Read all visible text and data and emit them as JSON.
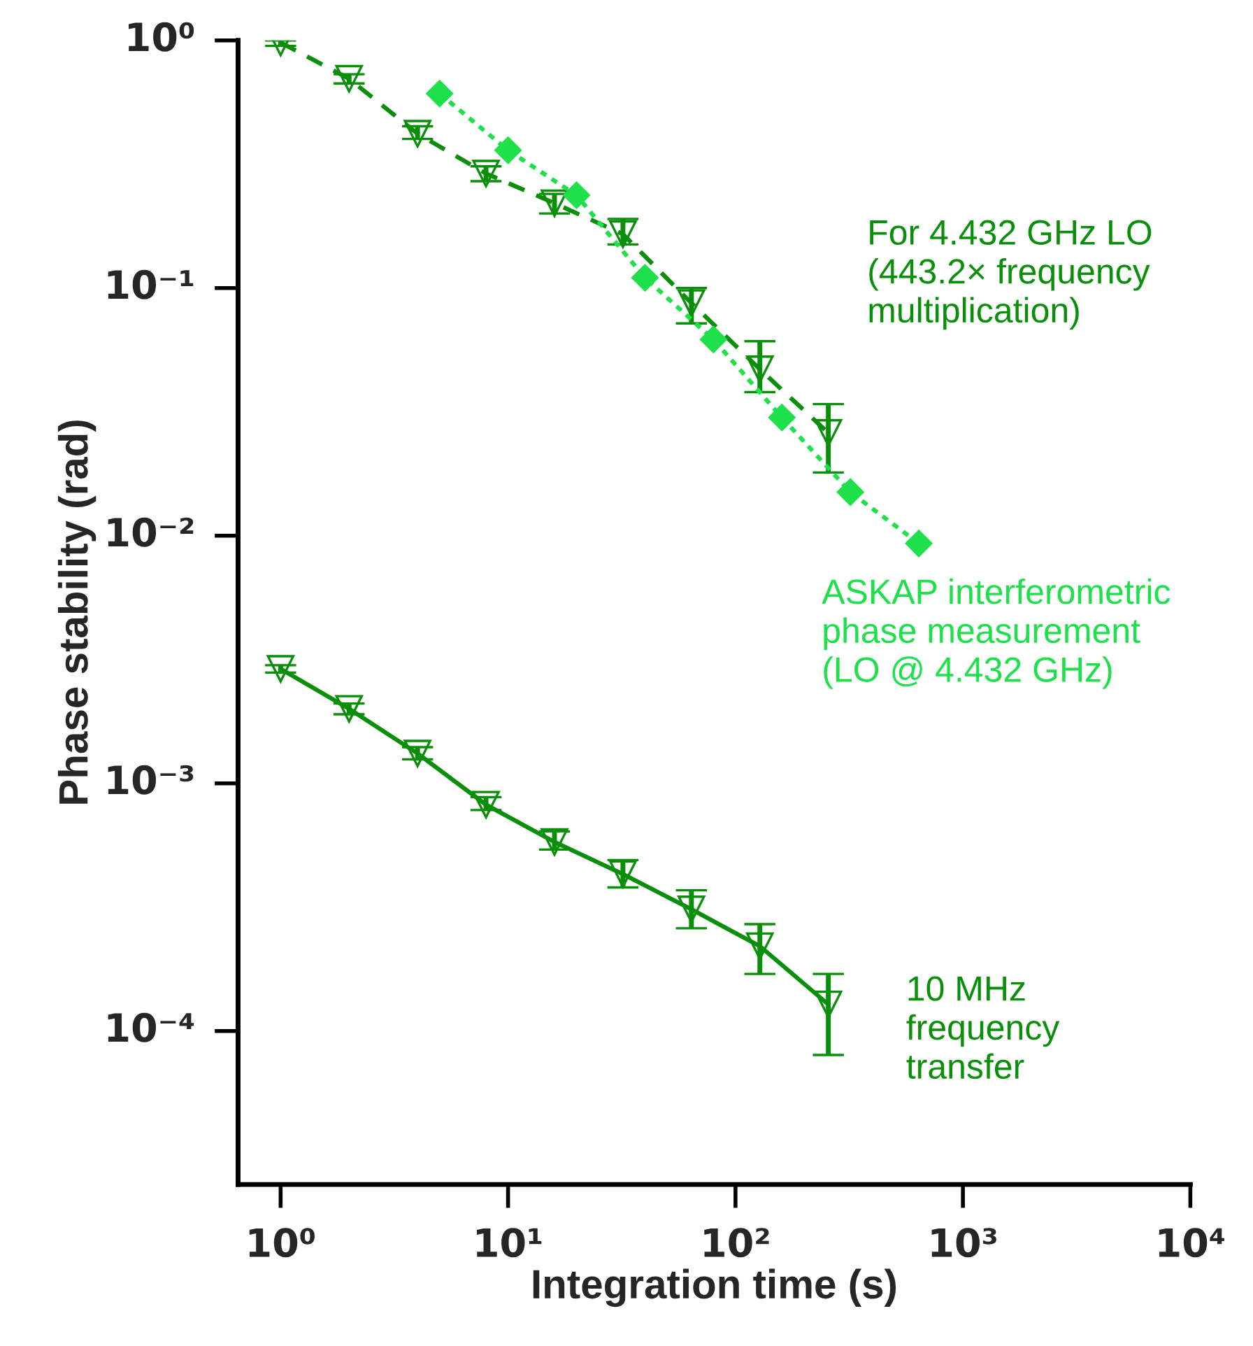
{
  "chart_data": {
    "type": "line",
    "xlabel": "Integration time (s)",
    "ylabel": "Phase stability (rad)",
    "log": "xy",
    "grid": false,
    "legend": false,
    "xlim": [
      0.65,
      10000
    ],
    "ylim": [
      2.4e-05,
      1
    ],
    "xticks": [
      {
        "value": 1,
        "label": "10⁰"
      },
      {
        "value": 10,
        "label": "10¹"
      },
      {
        "value": 100,
        "label": "10²"
      },
      {
        "value": 1000,
        "label": "10³"
      },
      {
        "value": 10000,
        "label": "10⁴"
      }
    ],
    "yticks": [
      {
        "value": 0.0001,
        "label": "10⁻⁴"
      },
      {
        "value": 0.001,
        "label": "10⁻³"
      },
      {
        "value": 0.01,
        "label": "10⁻²"
      },
      {
        "value": 0.1,
        "label": "10⁻¹"
      },
      {
        "value": 1,
        "label": "10⁰"
      }
    ],
    "series": [
      {
        "name": "For 4.432 GHz LO\n(443.2× frequency\nmultiplication)",
        "color": "#0a8f0a",
        "marker": "triangle",
        "line_style": "dashed",
        "x": [
          1,
          2,
          4,
          8,
          16,
          32,
          64,
          128,
          256
        ],
        "values": [
          0.98,
          0.7,
          0.42,
          0.29,
          0.22,
          0.165,
          0.087,
          0.047,
          0.026
        ],
        "errors": [
          [
            0.95,
            1.0
          ],
          [
            0.67,
            0.73
          ],
          [
            0.4,
            0.45
          ],
          [
            0.27,
            0.31
          ],
          [
            0.2,
            0.24
          ],
          [
            0.15,
            0.19
          ],
          [
            0.072,
            0.1
          ],
          [
            0.038,
            0.061
          ],
          [
            0.018,
            0.034
          ]
        ]
      },
      {
        "name": "ASKAP interferometric\nphase measurement\n(LO @ 4.432 GHz)",
        "color": "#1ee04a",
        "marker": "diamond",
        "line_style": "dotted",
        "x": [
          5,
          10,
          20,
          40,
          80,
          160,
          320,
          640
        ],
        "values": [
          0.61,
          0.36,
          0.237,
          0.11,
          0.062,
          0.03,
          0.015,
          0.0093
        ]
      },
      {
        "name": "10 MHz\nfrequency\ntransfer",
        "color": "#0a8f0a",
        "marker": "triangle",
        "line_style": "solid",
        "x": [
          1,
          2,
          4,
          8,
          16,
          32,
          64,
          128,
          256
        ],
        "values": [
          0.0029,
          0.002,
          0.00132,
          0.00082,
          0.00058,
          0.00043,
          0.00031,
          0.00022,
          0.000128
        ],
        "errors": [
          [
            0.0028,
            0.003
          ],
          [
            0.0019,
            0.0021
          ],
          [
            0.00125,
            0.0014
          ],
          [
            0.00078,
            0.00088
          ],
          [
            0.00054,
            0.00064
          ],
          [
            0.00038,
            0.00049
          ],
          [
            0.00026,
            0.00037
          ],
          [
            0.00017,
            0.00027
          ],
          [
            8e-05,
            0.00017
          ]
        ]
      }
    ]
  }
}
